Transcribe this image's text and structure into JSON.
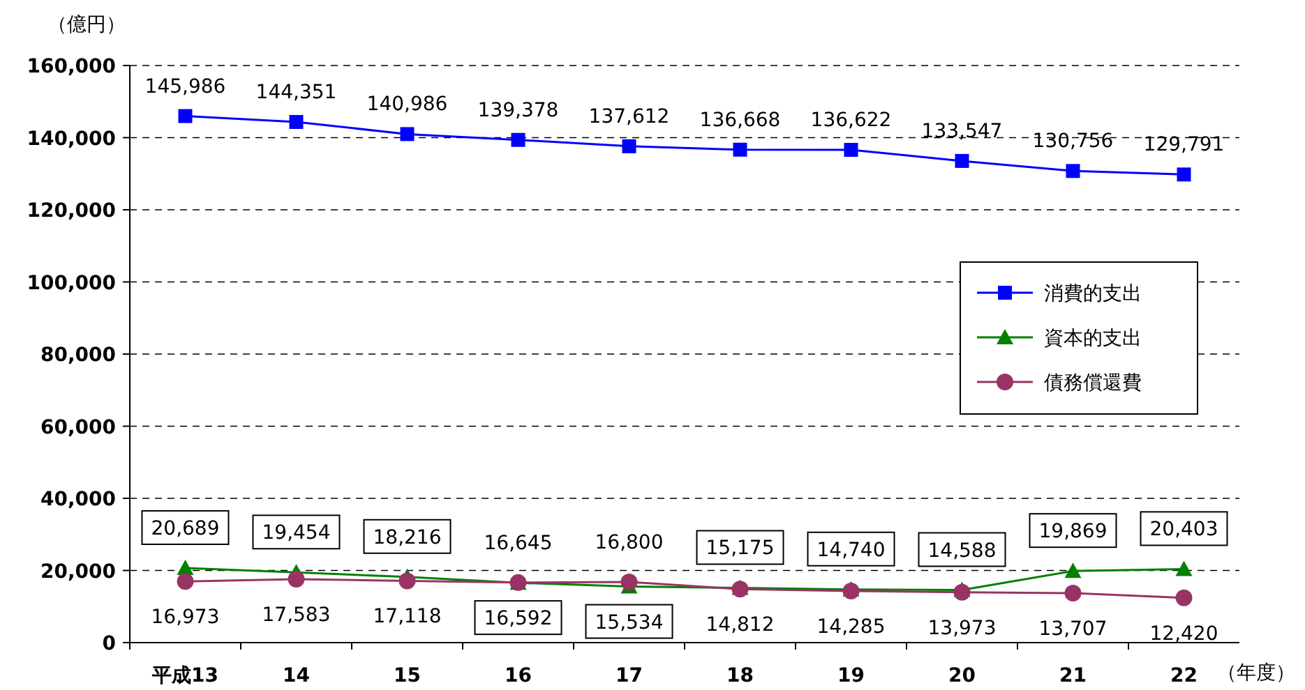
{
  "chart_data": {
    "type": "line",
    "ylabel": "（億円）",
    "xlabel": "（年度）",
    "categories": [
      "平成13",
      "14",
      "15",
      "16",
      "17",
      "18",
      "19",
      "20",
      "21",
      "22"
    ],
    "series": [
      {
        "name": "消費的支出",
        "color": "#0000ff",
        "marker": "square",
        "values": [
          145986,
          144351,
          140986,
          139378,
          137612,
          136668,
          136622,
          133547,
          130756,
          129791
        ],
        "value_labels": [
          "145,986",
          "144,351",
          "140,986",
          "139,378",
          "137,612",
          "136,668",
          "136,622",
          "133,547",
          "130,756",
          "129,791"
        ]
      },
      {
        "name": "資本的支出",
        "color": "#008000",
        "marker": "triangle",
        "values": [
          20689,
          19454,
          18216,
          16592,
          15534,
          15175,
          14740,
          14588,
          19869,
          20403
        ],
        "value_labels": [
          "20,689",
          "19,454",
          "18,216",
          "16,592",
          "15,534",
          "15,175",
          "14,740",
          "14,588",
          "19,869",
          "20,403"
        ]
      },
      {
        "name": "債務償還費",
        "color": "#993366",
        "marker": "circle",
        "values": [
          16973,
          17583,
          17118,
          16645,
          16800,
          14812,
          14285,
          13973,
          13707,
          12420
        ],
        "value_labels": [
          "16,973",
          "17,583",
          "17,118",
          "16,645",
          "16,800",
          "14,812",
          "14,285",
          "13,973",
          "13,707",
          "12,420"
        ]
      }
    ],
    "ylim": [
      0,
      160000
    ],
    "yticks": [
      0,
      {
        "value": 20000,
        "label": "20,000"
      },
      {
        "value": 40000,
        "label": "40,000"
      },
      {
        "value": 60000,
        "label": "60,000"
      },
      {
        "value": 80000,
        "label": "80,000"
      },
      {
        "value": 100000,
        "label": "100,000"
      },
      {
        "value": 120000,
        "label": "120,000"
      },
      {
        "value": 140000,
        "label": "140,000"
      },
      {
        "value": 160000,
        "label": "160,000"
      }
    ],
    "grid": "y",
    "legend": "right"
  }
}
